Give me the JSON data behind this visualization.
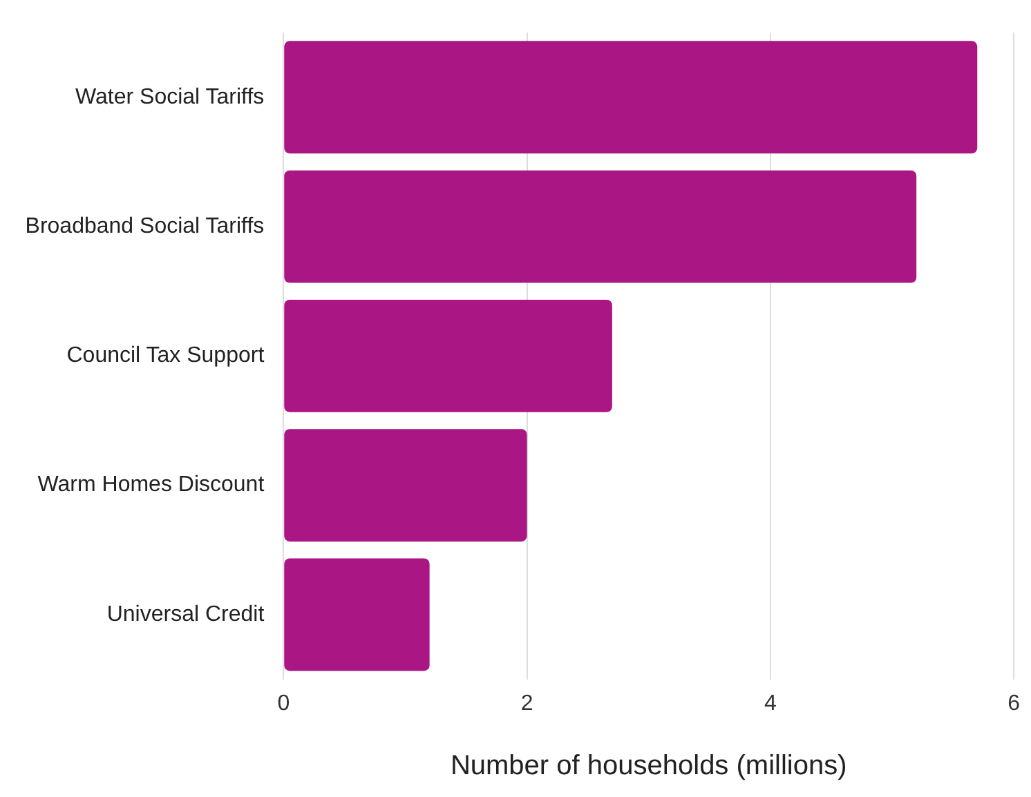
{
  "chart_data": {
    "type": "bar",
    "orientation": "horizontal",
    "xlabel": "Number of households (millions)",
    "categories": [
      "Water Social Tariffs",
      "Broadband Social Tariffs",
      "Council Tax Support",
      "Warm Homes Discount",
      "Universal Credit"
    ],
    "values": [
      5.7,
      5.2,
      2.7,
      2.0,
      1.2
    ],
    "color": "#ab1685",
    "xlim": [
      0,
      6
    ],
    "xticks": [
      0,
      2,
      4,
      6
    ],
    "grid": "x"
  }
}
